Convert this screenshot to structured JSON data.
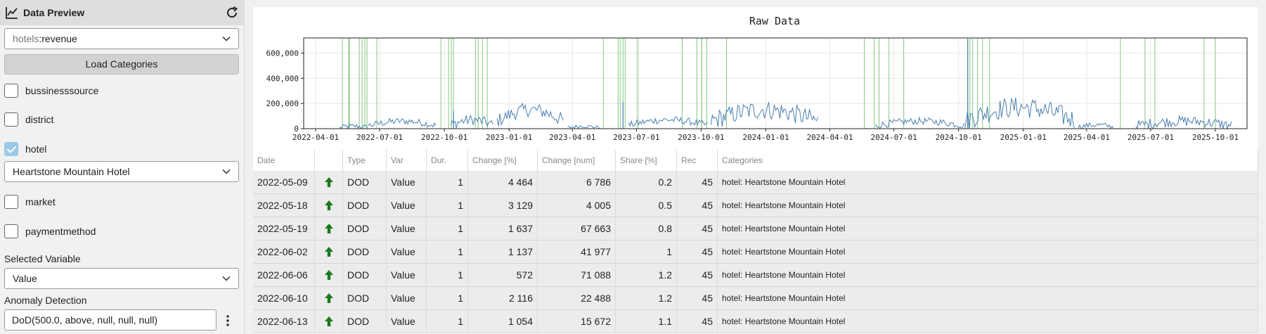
{
  "sidebar": {
    "title": "Data Preview",
    "dataset": {
      "source": "hotels",
      "separator": ":",
      "field": "revenue"
    },
    "load_label": "Load Categories",
    "categories": [
      {
        "label": "bussinesssource",
        "checked": false
      },
      {
        "label": "district",
        "checked": false
      },
      {
        "label": "hotel",
        "checked": true
      },
      {
        "label": "market",
        "checked": false
      },
      {
        "label": "paymentmethod",
        "checked": false
      }
    ],
    "hotel_selected": "Heartstone Mountain Hotel",
    "selected_variable_label": "Selected Variable",
    "selected_variable_value": "Value",
    "anomaly_label": "Anomaly Detection",
    "anomaly_value": "DoD(500.0, above, null, null, null)"
  },
  "chart_data": {
    "type": "line",
    "title": "Raw Data",
    "xlabel": "",
    "ylabel": "",
    "x_range": [
      "2022-03-15",
      "2025-11-15"
    ],
    "ylim": [
      0,
      720000
    ],
    "y_ticks": [
      "0",
      "200,000",
      "400,000",
      "600,000"
    ],
    "y_tick_values": [
      0,
      200000,
      400000,
      600000
    ],
    "x_ticks": [
      "2022-04-01",
      "2022-07-01",
      "2022-10-01",
      "2023-01-01",
      "2023-04-01",
      "2023-07-01",
      "2023-10-01",
      "2024-01-01",
      "2024-04-01",
      "2024-07-01",
      "2024-10-01",
      "2025-01-01",
      "2025-04-01",
      "2025-07-01",
      "2025-10-01"
    ],
    "grid": true,
    "line_color": "#4a7fb0",
    "marker_color": "#6fbf6f",
    "anomaly_dates": [
      "2022-05-09",
      "2022-05-18",
      "2022-05-19",
      "2022-06-02",
      "2022-06-06",
      "2022-06-10",
      "2022-06-13",
      "2022-06-27",
      "2022-09-26",
      "2022-10-07",
      "2022-10-11",
      "2022-10-14",
      "2022-11-14",
      "2022-11-18",
      "2022-11-24",
      "2022-12-01",
      "2023-05-15",
      "2023-06-05",
      "2023-06-08",
      "2023-06-12",
      "2023-06-15",
      "2023-07-03",
      "2023-09-04",
      "2023-09-25",
      "2023-10-02",
      "2023-10-09",
      "2023-11-06",
      "2024-05-20",
      "2024-06-03",
      "2024-06-10",
      "2024-06-24",
      "2024-07-15",
      "2024-10-14",
      "2024-10-17",
      "2024-10-21",
      "2024-10-28",
      "2024-11-04",
      "2024-11-14",
      "2025-05-19",
      "2025-06-23",
      "2025-07-07",
      "2025-09-15",
      "2025-10-01"
    ],
    "series_segments": [
      {
        "from": "2022-05-05",
        "to": "2022-06-15",
        "base": 20000,
        "amp": 30000
      },
      {
        "from": "2022-06-15",
        "to": "2022-09-20",
        "base": 60000,
        "amp": 40000
      },
      {
        "from": "2022-10-10",
        "to": "2022-12-10",
        "base": 70000,
        "amp": 60000
      },
      {
        "from": "2022-12-15",
        "to": "2023-03-20",
        "base": 150000,
        "amp": 80000
      },
      {
        "from": "2023-03-25",
        "to": "2023-05-10",
        "base": 20000,
        "amp": 20000
      },
      {
        "from": "2023-06-20",
        "to": "2023-10-10",
        "base": 70000,
        "amp": 40000
      },
      {
        "from": "2023-10-15",
        "to": "2024-03-15",
        "base": 150000,
        "amp": 110000
      },
      {
        "from": "2024-06-05",
        "to": "2024-10-10",
        "base": 60000,
        "amp": 40000
      },
      {
        "from": "2024-10-10",
        "to": "2025-03-15",
        "base": 170000,
        "amp": 120000
      },
      {
        "from": "2025-03-20",
        "to": "2025-05-10",
        "base": 30000,
        "amp": 30000
      },
      {
        "from": "2025-06-10",
        "to": "2025-10-25",
        "base": 60000,
        "amp": 60000
      }
    ],
    "spikes": [
      {
        "date": "2024-10-14",
        "value": 710000
      },
      {
        "date": "2023-06-12",
        "value": 210000
      },
      {
        "date": "2022-10-14",
        "value": 140000
      }
    ]
  },
  "table": {
    "headers": [
      "Date",
      "",
      "Type",
      "Var",
      "Dur.",
      "Change [%]",
      "Change [num]",
      "Share [%]",
      "Rec",
      "Categories"
    ],
    "rows": [
      {
        "date": "2022-05-09",
        "type": "DOD",
        "var": "Value",
        "dur": "1",
        "change_pct": "4 464",
        "change_num": "6 786",
        "share": "0.2",
        "rec": "45",
        "categories": "hotel: Heartstone Mountain Hotel"
      },
      {
        "date": "2022-05-18",
        "type": "DOD",
        "var": "Value",
        "dur": "1",
        "change_pct": "3 129",
        "change_num": "4 005",
        "share": "0.5",
        "rec": "45",
        "categories": "hotel: Heartstone Mountain Hotel"
      },
      {
        "date": "2022-05-19",
        "type": "DOD",
        "var": "Value",
        "dur": "1",
        "change_pct": "1 637",
        "change_num": "67 663",
        "share": "0.8",
        "rec": "45",
        "categories": "hotel: Heartstone Mountain Hotel"
      },
      {
        "date": "2022-06-02",
        "type": "DOD",
        "var": "Value",
        "dur": "1",
        "change_pct": "1 137",
        "change_num": "41 977",
        "share": "1",
        "rec": "45",
        "categories": "hotel: Heartstone Mountain Hotel"
      },
      {
        "date": "2022-06-06",
        "type": "DOD",
        "var": "Value",
        "dur": "1",
        "change_pct": "572",
        "change_num": "71 088",
        "share": "1.2",
        "rec": "45",
        "categories": "hotel: Heartstone Mountain Hotel"
      },
      {
        "date": "2022-06-10",
        "type": "DOD",
        "var": "Value",
        "dur": "1",
        "change_pct": "2 116",
        "change_num": "22 488",
        "share": "1.2",
        "rec": "45",
        "categories": "hotel: Heartstone Mountain Hotel"
      },
      {
        "date": "2022-06-13",
        "type": "DOD",
        "var": "Value",
        "dur": "1",
        "change_pct": "1 054",
        "change_num": "15 672",
        "share": "1.1",
        "rec": "45",
        "categories": "hotel: Heartstone Mountain Hotel"
      }
    ],
    "arrow_icon": "arrow-up-icon",
    "arrow_color": "#1a7a1a"
  }
}
